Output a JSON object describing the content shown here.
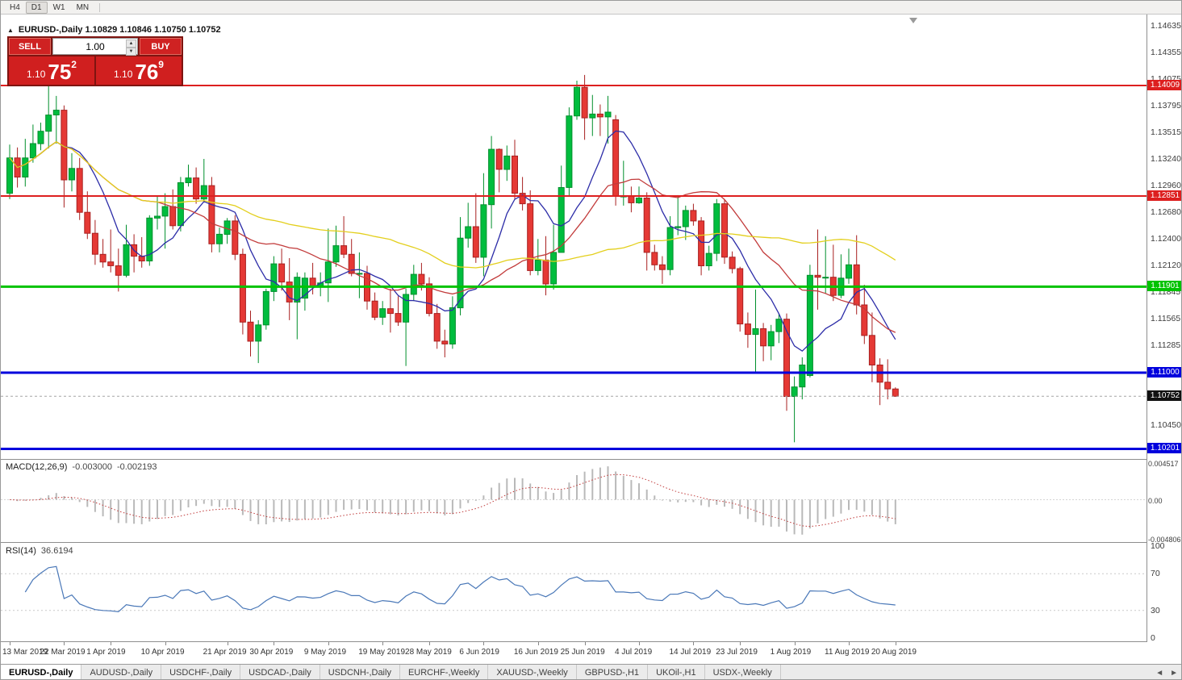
{
  "toolbar": {
    "timeframes": [
      "H4",
      "D1",
      "W1",
      "MN"
    ],
    "active": "D1"
  },
  "chart": {
    "collapse_arrow": "▲",
    "title_line": "EURUSD-,Daily 1.10829 1.10846 1.10750 1.10752"
  },
  "trade_panel": {
    "sell_label": "SELL",
    "buy_label": "BUY",
    "volume": "1.00",
    "spin_up": "▲",
    "spin_down": "▼",
    "sell_price": {
      "prefix": "1.10",
      "big": "75",
      "sup": "2"
    },
    "buy_price": {
      "prefix": "1.10",
      "big": "76",
      "sup": "9"
    }
  },
  "price_axis": {
    "ticks": [
      "1.14635",
      "1.14355",
      "1.14075",
      "1.13795",
      "1.13515",
      "1.13240",
      "1.12960",
      "1.12680",
      "1.12400",
      "1.12120",
      "1.11845",
      "1.11565",
      "1.11285",
      "1.10450"
    ]
  },
  "levels": [
    {
      "price": "1.14009",
      "color": "#dd1f1f",
      "width": 2
    },
    {
      "price": "1.12851",
      "color": "#dd1f1f",
      "width": 2
    },
    {
      "price": "1.11901",
      "color": "#00c300",
      "width": 3
    },
    {
      "price": "1.11000",
      "color": "#0000dd",
      "width": 3
    },
    {
      "price": "1.10201",
      "color": "#0000dd",
      "width": 3
    }
  ],
  "current_price": {
    "label": "1.10752",
    "bg": "#111111"
  },
  "colors": {
    "up": {
      "fill": "#00bd3e",
      "stroke": "#008f2c"
    },
    "down": {
      "fill": "#e53935",
      "stroke": "#a82020"
    },
    "rsi": "#4a78b8",
    "macd_signal": "#c03a3a",
    "macd_bar": "#b9b9b9"
  },
  "macd": {
    "name": "MACD(12,26,9)",
    "main": "-0.003000",
    "signal": "-0.002193",
    "axis": [
      "0.004517",
      "0.00",
      "-0.004806"
    ],
    "fast": 12,
    "slow": 26,
    "signal_period": 9
  },
  "rsi": {
    "name": "RSI(14)",
    "value": "36.6194",
    "axis": [
      "100",
      "70",
      "30",
      "0"
    ],
    "period": 14,
    "levels": [
      70,
      30
    ]
  },
  "tabs": {
    "items": [
      {
        "label": "EURUSD-,Daily",
        "active": true
      },
      {
        "label": "AUDUSD-,Daily"
      },
      {
        "label": "USDCHF-,Daily"
      },
      {
        "label": "USDCAD-,Daily"
      },
      {
        "label": "USDCNH-,Daily"
      },
      {
        "label": "EURCHF-,Weekly"
      },
      {
        "label": "XAUUSD-,Weekly"
      },
      {
        "label": "GBPUSD-,H1"
      },
      {
        "label": "UKOil-,H1"
      },
      {
        "label": "USDX-,Weekly"
      }
    ],
    "scroll_left": "◄",
    "scroll_right": "►"
  },
  "chart_data": {
    "type": "candlestick",
    "symbol": "EURUSD-",
    "timeframe": "Daily",
    "y_min": 1.102,
    "y_max": 1.1464,
    "x_labels": [
      {
        "label": "13 Mar 2019",
        "i": 0
      },
      {
        "label": "22 Mar 2019",
        "i": 7
      },
      {
        "label": "1 Apr 2019",
        "i": 13
      },
      {
        "label": "10 Apr 2019",
        "i": 20
      },
      {
        "label": "21 Apr 2019",
        "i": 28
      },
      {
        "label": "30 Apr 2019",
        "i": 34
      },
      {
        "label": "9 May 2019",
        "i": 41
      },
      {
        "label": "19 May 2019",
        "i": 48
      },
      {
        "label": "28 May 2019",
        "i": 54
      },
      {
        "label": "6 Jun 2019",
        "i": 61
      },
      {
        "label": "16 Jun 2019",
        "i": 68
      },
      {
        "label": "25 Jun 2019",
        "i": 74
      },
      {
        "label": "4 Jul 2019",
        "i": 81
      },
      {
        "label": "14 Jul 2019",
        "i": 88
      },
      {
        "label": "23 Jul 2019",
        "i": 94
      },
      {
        "label": "1 Aug 2019",
        "i": 101
      },
      {
        "label": "11 Aug 2019",
        "i": 108
      },
      {
        "label": "20 Aug 2019",
        "i": 114
      }
    ],
    "overlays": [
      {
        "name": "ma-fast",
        "period": 8,
        "color": "#2d2da8"
      },
      {
        "name": "ma-mid",
        "period": 20,
        "color": "#c23b3b"
      },
      {
        "name": "ma-slow",
        "period": 50,
        "color": "#e3cf1c"
      }
    ],
    "candles": [
      [
        1.1288,
        1.1339,
        1.1282,
        1.1325
      ],
      [
        1.1325,
        1.1336,
        1.1294,
        1.1305
      ],
      [
        1.1305,
        1.1345,
        1.1295,
        1.1325
      ],
      [
        1.1325,
        1.136,
        1.132,
        1.134
      ],
      [
        1.134,
        1.1362,
        1.1333,
        1.1353
      ],
      [
        1.1353,
        1.1402,
        1.1335,
        1.137
      ],
      [
        1.137,
        1.139,
        1.134,
        1.1375
      ],
      [
        1.1375,
        1.138,
        1.1273,
        1.1302
      ],
      [
        1.1302,
        1.133,
        1.129,
        1.1314
      ],
      [
        1.1314,
        1.1325,
        1.126,
        1.1268
      ],
      [
        1.1268,
        1.129,
        1.124,
        1.1246
      ],
      [
        1.1246,
        1.126,
        1.1213,
        1.1224
      ],
      [
        1.1224,
        1.124,
        1.121,
        1.1216
      ],
      [
        1.1216,
        1.125,
        1.1205,
        1.1212
      ],
      [
        1.1212,
        1.123,
        1.1185,
        1.1202
      ],
      [
        1.1202,
        1.1255,
        1.12,
        1.1234
      ],
      [
        1.1234,
        1.1245,
        1.1205,
        1.1222
      ],
      [
        1.1222,
        1.1242,
        1.121,
        1.1217
      ],
      [
        1.1217,
        1.1265,
        1.1212,
        1.1262
      ],
      [
        1.1262,
        1.1285,
        1.125,
        1.1264
      ],
      [
        1.1264,
        1.1288,
        1.123,
        1.1274
      ],
      [
        1.1274,
        1.1292,
        1.125,
        1.1254
      ],
      [
        1.1254,
        1.1305,
        1.1248,
        1.1299
      ],
      [
        1.1299,
        1.1318,
        1.1295,
        1.1304
      ],
      [
        1.1304,
        1.1315,
        1.1277,
        1.1282
      ],
      [
        1.1282,
        1.1324,
        1.128,
        1.1296
      ],
      [
        1.1296,
        1.1305,
        1.1226,
        1.1235
      ],
      [
        1.1235,
        1.1252,
        1.1226,
        1.1245
      ],
      [
        1.1245,
        1.1262,
        1.1235,
        1.1259
      ],
      [
        1.1259,
        1.1265,
        1.1218,
        1.1224
      ],
      [
        1.1224,
        1.123,
        1.114,
        1.1153
      ],
      [
        1.1153,
        1.1165,
        1.1117,
        1.1133
      ],
      [
        1.1133,
        1.1155,
        1.111,
        1.115
      ],
      [
        1.115,
        1.1188,
        1.1145,
        1.1185
      ],
      [
        1.1185,
        1.1222,
        1.1175,
        1.1214
      ],
      [
        1.1214,
        1.123,
        1.1186,
        1.1195
      ],
      [
        1.1195,
        1.122,
        1.1155,
        1.1174
      ],
      [
        1.1174,
        1.1205,
        1.1135,
        1.12
      ],
      [
        1.1178,
        1.1205,
        1.1165,
        1.1199
      ],
      [
        1.1199,
        1.1215,
        1.1182,
        1.119
      ],
      [
        1.119,
        1.1205,
        1.118,
        1.1194
      ],
      [
        1.1194,
        1.1251,
        1.1174,
        1.1216
      ],
      [
        1.1216,
        1.1254,
        1.1211,
        1.1233
      ],
      [
        1.1233,
        1.1264,
        1.122,
        1.1224
      ],
      [
        1.1224,
        1.124,
        1.1201,
        1.1204
      ],
      [
        1.1204,
        1.1226,
        1.1178,
        1.1204
      ],
      [
        1.1204,
        1.1212,
        1.1166,
        1.1175
      ],
      [
        1.1175,
        1.1184,
        1.1155,
        1.1158
      ],
      [
        1.1158,
        1.1175,
        1.115,
        1.1167
      ],
      [
        1.1167,
        1.1188,
        1.1142,
        1.1162
      ],
      [
        1.1162,
        1.118,
        1.1149,
        1.1153
      ],
      [
        1.1153,
        1.1188,
        1.1107,
        1.1182
      ],
      [
        1.1182,
        1.1213,
        1.1175,
        1.1203
      ],
      [
        1.1203,
        1.1215,
        1.1186,
        1.1193
      ],
      [
        1.1193,
        1.12,
        1.1159,
        1.1162
      ],
      [
        1.1162,
        1.1172,
        1.1125,
        1.1133
      ],
      [
        1.1133,
        1.1145,
        1.1116,
        1.113
      ],
      [
        1.113,
        1.118,
        1.1125,
        1.1168
      ],
      [
        1.1168,
        1.1263,
        1.116,
        1.1241
      ],
      [
        1.1241,
        1.1278,
        1.1231,
        1.1253
      ],
      [
        1.1253,
        1.1288,
        1.1215,
        1.1221
      ],
      [
        1.1221,
        1.1309,
        1.1201,
        1.1276
      ],
      [
        1.1276,
        1.1348,
        1.1251,
        1.1334
      ],
      [
        1.1334,
        1.1335,
        1.1289,
        1.1313
      ],
      [
        1.1313,
        1.1338,
        1.1301,
        1.1327
      ],
      [
        1.1327,
        1.1344,
        1.1282,
        1.1288
      ],
      [
        1.1288,
        1.1305,
        1.127,
        1.1277
      ],
      [
        1.1277,
        1.1291,
        1.1202,
        1.1207
      ],
      [
        1.1207,
        1.124,
        1.1202,
        1.1218
      ],
      [
        1.1218,
        1.1243,
        1.1181,
        1.1193
      ],
      [
        1.1193,
        1.1255,
        1.1187,
        1.1226
      ],
      [
        1.1226,
        1.1317,
        1.1226,
        1.1294
      ],
      [
        1.1294,
        1.1378,
        1.1285,
        1.1369
      ],
      [
        1.1369,
        1.1406,
        1.1365,
        1.1399
      ],
      [
        1.1399,
        1.1412,
        1.1344,
        1.1367
      ],
      [
        1.1367,
        1.1391,
        1.1348,
        1.1371
      ],
      [
        1.1371,
        1.1381,
        1.1348,
        1.1368
      ],
      [
        1.1368,
        1.139,
        1.134,
        1.1373
      ],
      [
        1.1365,
        1.137,
        1.1275,
        1.1285
      ],
      [
        1.1285,
        1.1322,
        1.1275,
        1.1285
      ],
      [
        1.1285,
        1.1295,
        1.1268,
        1.1278
      ],
      [
        1.1278,
        1.1295,
        1.1277,
        1.1283
      ],
      [
        1.1283,
        1.1289,
        1.1207,
        1.1226
      ],
      [
        1.1226,
        1.1234,
        1.1207,
        1.1213
      ],
      [
        1.1213,
        1.1222,
        1.1193,
        1.1208
      ],
      [
        1.1208,
        1.1264,
        1.1202,
        1.1252
      ],
      [
        1.1252,
        1.1286,
        1.1244,
        1.1253
      ],
      [
        1.1253,
        1.1275,
        1.1239,
        1.127
      ],
      [
        1.127,
        1.1277,
        1.1254,
        1.1259
      ],
      [
        1.1259,
        1.1263,
        1.1202,
        1.1212
      ],
      [
        1.1212,
        1.1233,
        1.1207,
        1.1225
      ],
      [
        1.1225,
        1.1282,
        1.1217,
        1.1277
      ],
      [
        1.1277,
        1.1282,
        1.1214,
        1.1221
      ],
      [
        1.1221,
        1.1227,
        1.1204,
        1.1209
      ],
      [
        1.1209,
        1.1211,
        1.1143,
        1.1151
      ],
      [
        1.1151,
        1.1163,
        1.1126,
        1.114
      ],
      [
        1.114,
        1.1187,
        1.1101,
        1.1146
      ],
      [
        1.1146,
        1.1152,
        1.1112,
        1.1128
      ],
      [
        1.1128,
        1.115,
        1.1113,
        1.1143
      ],
      [
        1.1143,
        1.1162,
        1.1131,
        1.1156
      ],
      [
        1.1156,
        1.1162,
        1.106,
        1.1075
      ],
      [
        1.1075,
        1.1096,
        1.1027,
        1.1085
      ],
      [
        1.1085,
        1.1116,
        1.1072,
        1.1108
      ],
      [
        1.1097,
        1.1213,
        1.1095,
        1.1202
      ],
      [
        1.1202,
        1.125,
        1.1166,
        1.12
      ],
      [
        1.12,
        1.1243,
        1.1183,
        1.12
      ],
      [
        1.12,
        1.1234,
        1.1175,
        1.1181
      ],
      [
        1.1181,
        1.1224,
        1.1178,
        1.1199
      ],
      [
        1.1199,
        1.123,
        1.1193,
        1.1213
      ],
      [
        1.1213,
        1.1244,
        1.1161,
        1.1171
      ],
      [
        1.1171,
        1.1192,
        1.113,
        1.1139
      ],
      [
        1.1139,
        1.1163,
        1.109,
        1.1108
      ],
      [
        1.1108,
        1.1115,
        1.1066,
        1.109
      ],
      [
        1.109,
        1.1114,
        1.1072,
        1.1083
      ],
      [
        1.10829,
        1.10846,
        1.1075,
        1.10752
      ]
    ]
  }
}
